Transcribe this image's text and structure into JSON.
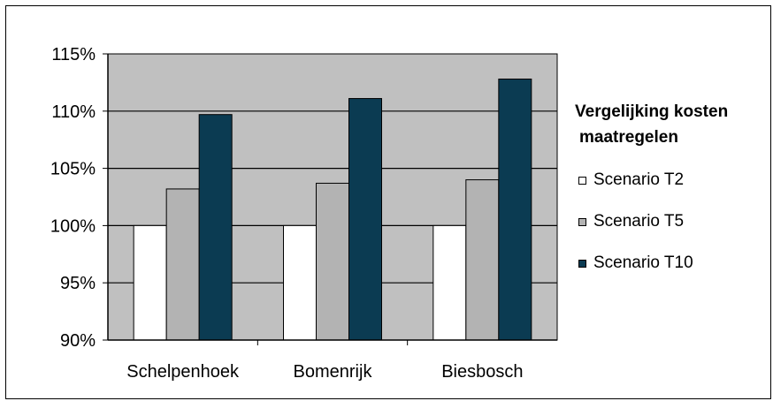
{
  "chart_data": {
    "type": "bar",
    "title": "Vergelijking kosten maatregelen",
    "categories": [
      "Schelpenhoek",
      "Bomenrijk",
      "Biesbosch"
    ],
    "series": [
      {
        "name": "Scenario T2",
        "color": "#ffffff",
        "values": [
          100,
          100,
          100
        ]
      },
      {
        "name": "Scenario T5",
        "color": "#b3b3b3",
        "values": [
          103.2,
          103.7,
          104.0
        ]
      },
      {
        "name": "Scenario T10",
        "color": "#0b3b52",
        "values": [
          109.7,
          111.1,
          112.8
        ]
      }
    ],
    "ylim": [
      90,
      115
    ],
    "yticks": [
      "90%",
      "95%",
      "100%",
      "105%",
      "110%",
      "115%"
    ],
    "ytick_values": [
      90,
      95,
      100,
      105,
      110,
      115
    ],
    "plot_background": "#c0c0c0",
    "grid": true,
    "legend_position": "right"
  },
  "legend": {
    "title_line1": "Vergelijking kosten",
    "title_line2": "maatregelen"
  }
}
